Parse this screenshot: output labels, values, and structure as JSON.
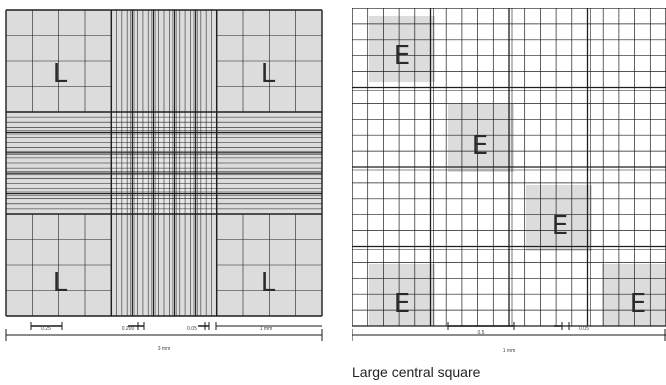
{
  "caption": "Large central square",
  "colors": {
    "background": "#ffffff",
    "shaded": "#dcdcdc",
    "grid_line": "#1e1e1e",
    "frame": "#1a1a1a",
    "text": "#222222"
  },
  "left_diagram": {
    "corner_letter": "L",
    "scale_labels": [
      "0.25",
      "0.200",
      "0.05",
      "1 mm"
    ],
    "total_label": "3 mm"
  },
  "right_diagram": {
    "square_letter": "E",
    "scale_labels": [
      "0.5",
      "0.05"
    ],
    "total_label": "1 mm"
  }
}
